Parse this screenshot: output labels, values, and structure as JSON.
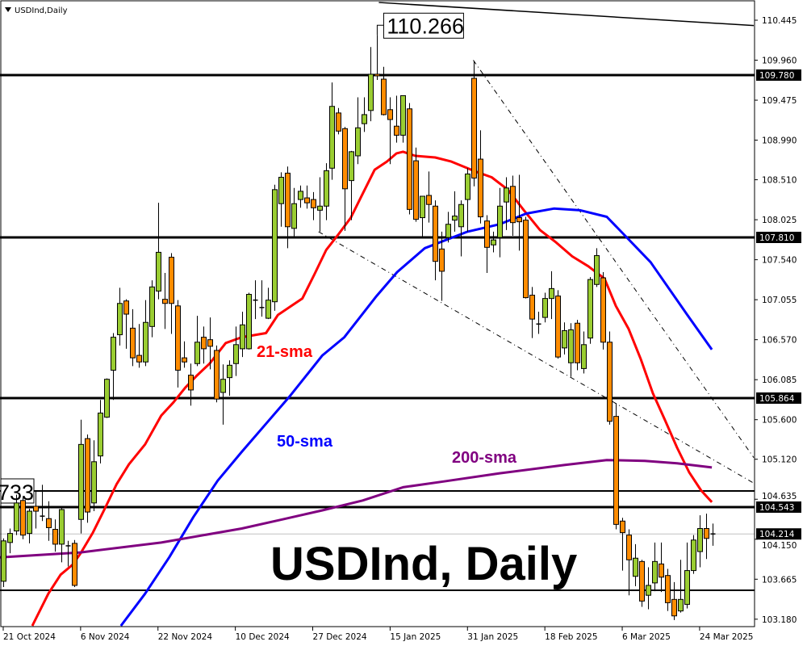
{
  "chart_data": {
    "type": "candlestick",
    "title": "USDInd,Daily",
    "watermark": "USDInd, Daily",
    "ylim": [
      103.09,
      110.69
    ],
    "grid": false,
    "colors": {
      "up": "#9ACD32",
      "down": "#FF8C00",
      "sma21": "#FF0000",
      "sma50": "#0000FF",
      "sma200": "#800080"
    },
    "y_ticks": [
      "110.445",
      "109.960",
      "109.475",
      "108.990",
      "108.510",
      "108.025",
      "107.540",
      "107.055",
      "106.570",
      "106.085",
      "105.600",
      "105.120",
      "104.635",
      "104.150",
      "103.665",
      "103.180"
    ],
    "x_ticks": [
      {
        "bar": 0,
        "label": "21 Oct 2024"
      },
      {
        "bar": 12,
        "label": "6 Nov 2024"
      },
      {
        "bar": 24,
        "label": "22 Nov 2024"
      },
      {
        "bar": 36,
        "label": "10 Dec 2024"
      },
      {
        "bar": 48,
        "label": "27 Dec 2024"
      },
      {
        "bar": 60,
        "label": "15 Jan 2025"
      },
      {
        "bar": 72,
        "label": "31 Jan 2025"
      },
      {
        "bar": 84,
        "label": "18 Feb 2025"
      },
      {
        "bar": 96,
        "label": "6 Mar 2025"
      },
      {
        "bar": 108,
        "label": "24 Mar 2025"
      }
    ],
    "candles_ohlc": [
      [
        103.64,
        104.13,
        103.57,
        104.16
      ],
      [
        104.11,
        104.22,
        103.98,
        104.28
      ],
      [
        104.25,
        104.59,
        104.2,
        104.69
      ],
      [
        104.62,
        104.2,
        104.15,
        104.66
      ],
      [
        104.22,
        104.49,
        104.1,
        104.52
      ],
      [
        104.55,
        104.49,
        104.28,
        104.74
      ],
      [
        104.43,
        104.43,
        104.37,
        104.81
      ],
      [
        104.4,
        104.29,
        104.13,
        104.61
      ],
      [
        104.27,
        104.09,
        104.0,
        104.39
      ],
      [
        104.09,
        104.51,
        103.87,
        104.55
      ],
      [
        104.07,
        104.07,
        103.82,
        104.13
      ],
      [
        104.1,
        103.59,
        103.57,
        104.14
      ],
      [
        104.39,
        105.3,
        104.22,
        105.6
      ],
      [
        105.37,
        104.48,
        104.35,
        105.42
      ],
      [
        104.59,
        105.09,
        104.49,
        105.35
      ],
      [
        105.16,
        105.68,
        105.07,
        105.84
      ],
      [
        105.63,
        106.09,
        105.62,
        106.1
      ],
      [
        106.2,
        106.6,
        105.84,
        106.65
      ],
      [
        106.63,
        107.01,
        106.5,
        107.2
      ],
      [
        107.04,
        106.88,
        106.46,
        107.06
      ],
      [
        106.71,
        106.35,
        106.25,
        106.94
      ],
      [
        106.38,
        106.3,
        106.23,
        106.76
      ],
      [
        106.3,
        106.78,
        106.25,
        107.05
      ],
      [
        106.73,
        107.21,
        106.6,
        107.29
      ],
      [
        107.16,
        107.63,
        107.06,
        108.23
      ],
      [
        107.06,
        107.01,
        106.7,
        107.38
      ],
      [
        107.57,
        107.01,
        106.64,
        107.62
      ],
      [
        106.98,
        106.2,
        105.99,
        107.05
      ],
      [
        106.35,
        106.3,
        106.23,
        106.55
      ],
      [
        106.14,
        105.96,
        105.77,
        106.28
      ],
      [
        106.28,
        106.54,
        106.25,
        106.86
      ],
      [
        106.6,
        106.46,
        106.28,
        106.73
      ],
      [
        106.57,
        106.49,
        106.21,
        106.84
      ],
      [
        106.44,
        105.85,
        105.81,
        106.5
      ],
      [
        105.93,
        106.09,
        105.54,
        106.27
      ],
      [
        106.11,
        106.26,
        105.89,
        106.32
      ],
      [
        106.28,
        106.51,
        106.13,
        106.73
      ],
      [
        106.46,
        106.75,
        106.36,
        106.91
      ],
      [
        106.46,
        107.12,
        106.45,
        107.14
      ],
      [
        107.05,
        107.05,
        106.82,
        107.29
      ],
      [
        106.96,
        106.96,
        106.85,
        107.29
      ],
      [
        106.83,
        107.05,
        106.82,
        107.2
      ],
      [
        107.03,
        108.39,
        106.92,
        108.45
      ],
      [
        108.22,
        108.54,
        107.94,
        108.6
      ],
      [
        108.59,
        107.94,
        107.68,
        108.67
      ],
      [
        107.92,
        108.22,
        107.82,
        108.41
      ],
      [
        108.27,
        108.37,
        108.17,
        108.44
      ],
      [
        108.29,
        108.23,
        108.16,
        108.44
      ],
      [
        108.27,
        108.17,
        108.02,
        108.36
      ],
      [
        108.14,
        108.19,
        107.88,
        108.54
      ],
      [
        108.19,
        108.62,
        108.02,
        108.71
      ],
      [
        108.65,
        109.4,
        108.51,
        109.69
      ],
      [
        109.32,
        109.1,
        109.06,
        109.38
      ],
      [
        109.13,
        108.4,
        107.89,
        109.15
      ],
      [
        108.5,
        108.85,
        108.02,
        108.86
      ],
      [
        108.8,
        109.14,
        108.7,
        109.51
      ],
      [
        109.19,
        109.3,
        109.09,
        109.51
      ],
      [
        109.35,
        109.79,
        109.22,
        110.12
      ],
      [
        109.79,
        109.77,
        109.72,
        110.266
      ],
      [
        109.73,
        109.3,
        109.29,
        109.88
      ],
      [
        109.36,
        109.24,
        108.7,
        109.51
      ],
      [
        109.16,
        109.05,
        108.96,
        109.53
      ],
      [
        109.05,
        109.53,
        108.96,
        109.53
      ],
      [
        109.37,
        108.15,
        108.09,
        109.44
      ],
      [
        108.74,
        108.03,
        108.0,
        108.9
      ],
      [
        108.05,
        108.31,
        107.82,
        108.31
      ],
      [
        108.32,
        108.21,
        107.99,
        108.61
      ],
      [
        108.19,
        107.52,
        107.29,
        108.26
      ],
      [
        107.67,
        107.4,
        107.04,
        107.88
      ],
      [
        107.81,
        107.97,
        107.75,
        108.12
      ],
      [
        108.02,
        108.07,
        107.88,
        108.37
      ],
      [
        107.94,
        108.21,
        107.58,
        108.26
      ],
      [
        108.27,
        108.58,
        107.88,
        108.65
      ],
      [
        109.74,
        108.53,
        108.43,
        109.95
      ],
      [
        108.76,
        108.06,
        107.98,
        109.11
      ],
      [
        108.01,
        107.69,
        107.38,
        108.08
      ],
      [
        107.72,
        107.78,
        107.63,
        107.88
      ],
      [
        107.81,
        108.19,
        107.57,
        108.41
      ],
      [
        108.24,
        108.41,
        107.9,
        108.54
      ],
      [
        108.43,
        107.99,
        107.83,
        108.56
      ],
      [
        108.05,
        108.0,
        107.65,
        108.57
      ],
      [
        108.02,
        107.08,
        107.07,
        108.06
      ],
      [
        107.11,
        106.82,
        106.59,
        107.21
      ],
      [
        106.76,
        106.75,
        106.64,
        106.91
      ],
      [
        106.84,
        107.07,
        106.78,
        107.14
      ],
      [
        107.07,
        107.19,
        106.82,
        107.4
      ],
      [
        107.1,
        106.36,
        106.34,
        107.17
      ],
      [
        106.47,
        106.68,
        106.39,
        106.78
      ],
      [
        106.29,
        106.69,
        106.12,
        106.77
      ],
      [
        106.77,
        106.29,
        106.2,
        106.81
      ],
      [
        106.22,
        106.51,
        106.16,
        106.67
      ],
      [
        106.59,
        107.3,
        106.52,
        107.33
      ],
      [
        107.24,
        107.59,
        107.21,
        107.68
      ],
      [
        107.32,
        106.54,
        106.45,
        107.39
      ],
      [
        106.54,
        105.58,
        105.54,
        106.67
      ],
      [
        105.64,
        104.33,
        104.27,
        105.8
      ],
      [
        104.37,
        104.23,
        103.77,
        104.41
      ],
      [
        104.2,
        103.9,
        103.47,
        104.27
      ],
      [
        103.7,
        103.92,
        103.58,
        104.09
      ],
      [
        103.88,
        103.4,
        103.33,
        103.9
      ],
      [
        103.47,
        103.59,
        103.3,
        103.81
      ],
      [
        103.62,
        103.88,
        103.52,
        104.11
      ],
      [
        103.85,
        103.69,
        103.51,
        104.11
      ],
      [
        103.71,
        103.38,
        103.28,
        103.79
      ],
      [
        103.42,
        103.22,
        103.17,
        103.63
      ],
      [
        103.28,
        103.42,
        103.26,
        103.9
      ],
      [
        103.36,
        103.77,
        103.31,
        104.11
      ],
      [
        103.77,
        104.14,
        103.73,
        104.2
      ],
      [
        104.0,
        104.28,
        103.81,
        104.44
      ],
      [
        104.28,
        104.16,
        103.91,
        104.46
      ],
      [
        104.2,
        104.214,
        104.07,
        104.34
      ]
    ],
    "candles_format": [
      "open",
      "close",
      "low",
      "high"
    ],
    "series": [
      {
        "name": "21-sma",
        "points": [
          [
            4.5,
            103.1
          ],
          [
            7,
            103.49
          ],
          [
            8.9,
            103.72
          ],
          [
            10.75,
            103.84
          ],
          [
            12,
            103.98
          ],
          [
            13.9,
            104.23
          ],
          [
            15.75,
            104.52
          ],
          [
            17.6,
            104.82
          ],
          [
            19.5,
            105.06
          ],
          [
            22,
            105.3
          ],
          [
            24.5,
            105.65
          ],
          [
            26.4,
            105.81
          ],
          [
            28.25,
            105.99
          ],
          [
            30.1,
            106.14
          ],
          [
            32,
            106.28
          ],
          [
            34.5,
            106.53
          ],
          [
            37,
            106.6
          ],
          [
            40.75,
            106.65
          ],
          [
            42.6,
            106.87
          ],
          [
            44.5,
            106.97
          ],
          [
            46.4,
            107.07
          ],
          [
            48.25,
            107.36
          ],
          [
            50.1,
            107.66
          ],
          [
            52,
            107.85
          ],
          [
            53.9,
            108.05
          ],
          [
            55.75,
            108.34
          ],
          [
            57.6,
            108.63
          ],
          [
            59.5,
            108.73
          ],
          [
            61,
            108.83
          ],
          [
            62,
            108.85
          ],
          [
            63.9,
            108.8
          ],
          [
            67,
            108.78
          ],
          [
            69.5,
            108.73
          ],
          [
            73.25,
            108.61
          ],
          [
            75.75,
            108.54
          ],
          [
            78.25,
            108.39
          ],
          [
            80.75,
            108.14
          ],
          [
            83.25,
            107.9
          ],
          [
            85.75,
            107.75
          ],
          [
            88.25,
            107.58
          ],
          [
            90.75,
            107.46
          ],
          [
            93.25,
            107.31
          ],
          [
            95,
            106.98
          ],
          [
            97,
            106.7
          ],
          [
            98.9,
            106.33
          ],
          [
            100.75,
            105.92
          ],
          [
            102.6,
            105.6
          ],
          [
            104.5,
            105.26
          ],
          [
            106.4,
            104.96
          ],
          [
            108.25,
            104.74
          ],
          [
            109.9,
            104.6
          ]
        ]
      },
      {
        "name": "50-sma",
        "points": [
          [
            18.25,
            103.1
          ],
          [
            22,
            103.49
          ],
          [
            25.75,
            103.93
          ],
          [
            29.5,
            104.42
          ],
          [
            33.25,
            104.86
          ],
          [
            37,
            105.21
          ],
          [
            40.75,
            105.55
          ],
          [
            44.5,
            105.89
          ],
          [
            49.5,
            106.38
          ],
          [
            52.9,
            106.6
          ],
          [
            57.9,
            107.1
          ],
          [
            61.1,
            107.39
          ],
          [
            65.4,
            107.68
          ],
          [
            72,
            107.88
          ],
          [
            77,
            107.97
          ],
          [
            81.1,
            108.1
          ],
          [
            85.4,
            108.16
          ],
          [
            89.5,
            108.14
          ],
          [
            93.6,
            108.06
          ],
          [
            96.1,
            107.86
          ],
          [
            100.4,
            107.51
          ],
          [
            106.1,
            106.87
          ],
          [
            109.9,
            106.45
          ]
        ]
      },
      {
        "name": "200-sma",
        "points": [
          [
            -0.5,
            103.93
          ],
          [
            12,
            103.99
          ],
          [
            24.5,
            104.11
          ],
          [
            37,
            104.28
          ],
          [
            43.25,
            104.39
          ],
          [
            49.5,
            104.5
          ],
          [
            55.75,
            104.62
          ],
          [
            62,
            104.78
          ],
          [
            68.25,
            104.85
          ],
          [
            77,
            104.95
          ],
          [
            87,
            105.05
          ],
          [
            93.6,
            105.11
          ],
          [
            99.5,
            105.1
          ],
          [
            104.5,
            105.07
          ],
          [
            109.9,
            105.02
          ]
        ]
      }
    ],
    "levels": [
      {
        "price": 109.78,
        "label": "109.780",
        "weight": "thick"
      },
      {
        "price": 107.81,
        "label": "107.810",
        "weight": "thick"
      },
      {
        "price": 105.864,
        "label": "105.864",
        "weight": "thick"
      },
      {
        "price": 104.733,
        "label": "733",
        "weight": "normal"
      },
      {
        "price": 104.543,
        "label": "104.543",
        "weight": "thick"
      },
      {
        "price": 103.53,
        "label": "",
        "weight": "normal"
      }
    ],
    "current_price": {
      "price": 104.214,
      "label": "104.214"
    },
    "peak_annotation": {
      "bar": 58,
      "price": 110.266,
      "label": "110.266"
    },
    "trendlines": [
      {
        "style": "solid",
        "from": [
          58.25,
          110.66
        ],
        "to": [
          116.4,
          110.38
        ]
      },
      {
        "style": "dashdot",
        "from": [
          72.9,
          109.96
        ],
        "to": [
          116.4,
          105.14
        ]
      },
      {
        "style": "dashdot",
        "from": [
          48.9,
          107.88
        ],
        "to": [
          116.4,
          104.83
        ]
      }
    ]
  }
}
